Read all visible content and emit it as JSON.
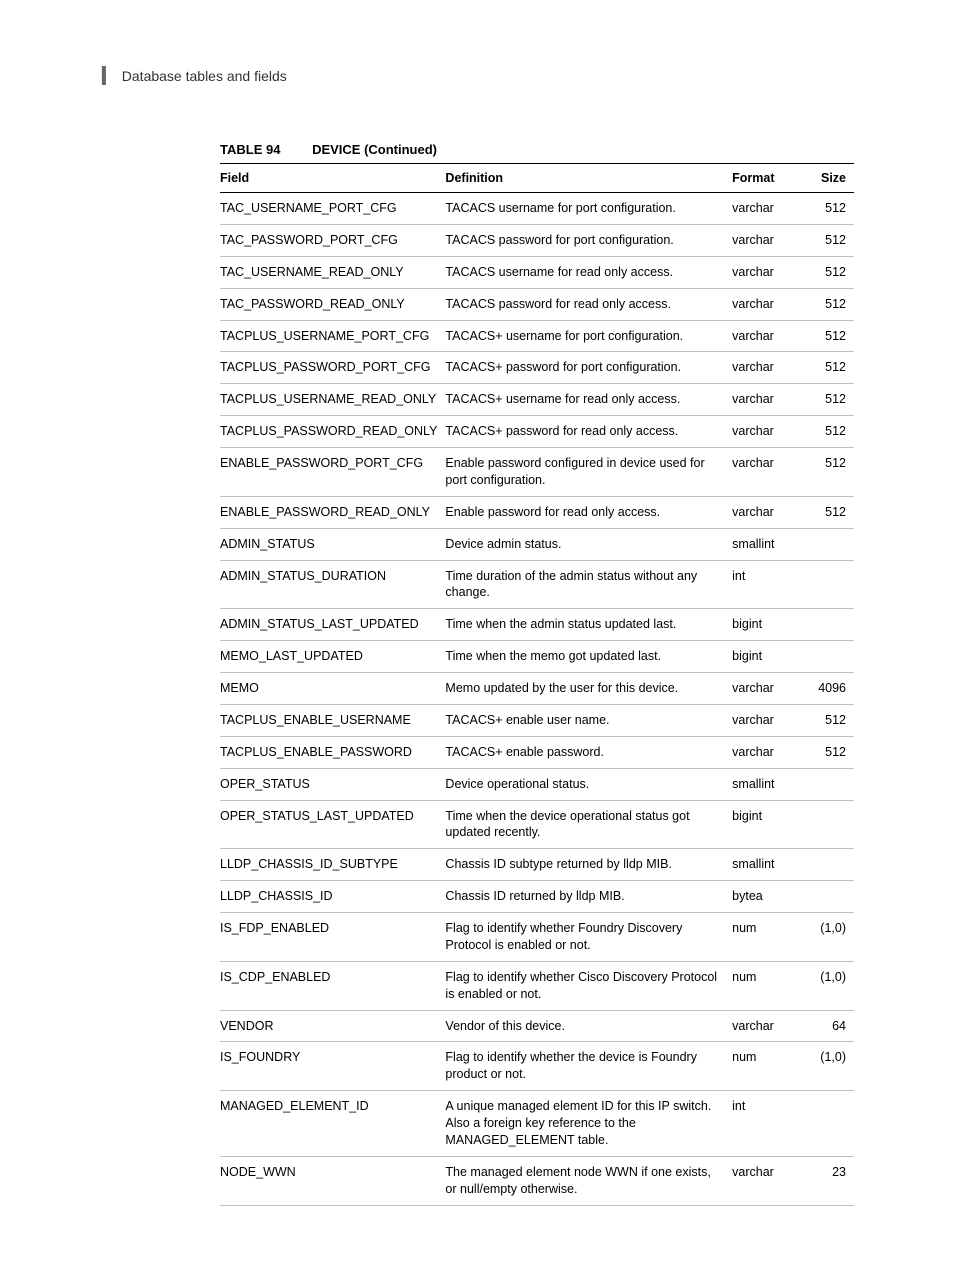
{
  "header": {
    "letter": "I",
    "title": "Database tables and fields"
  },
  "table": {
    "label": "TABLE 94",
    "name": "DEVICE (Continued)",
    "columns": [
      "Field",
      "Definition",
      "Format",
      "Size"
    ],
    "rows": [
      [
        "TAC_USERNAME_PORT_CFG",
        "TACACS username for port configuration.",
        "varchar",
        "512"
      ],
      [
        "TAC_PASSWORD_PORT_CFG",
        "TACACS password for port configuration.",
        "varchar",
        "512"
      ],
      [
        "TAC_USERNAME_READ_ONLY",
        "TACACS username for read only access.",
        "varchar",
        "512"
      ],
      [
        "TAC_PASSWORD_READ_ONLY",
        "TACACS password for read only access.",
        "varchar",
        "512"
      ],
      [
        "TACPLUS_USERNAME_PORT_CFG",
        "TACACS+ username for port configuration.",
        "varchar",
        "512"
      ],
      [
        "TACPLUS_PASSWORD_PORT_CFG",
        "TACACS+ password for port configuration.",
        "varchar",
        "512"
      ],
      [
        "TACPLUS_USERNAME_READ_ONLY",
        "TACACS+ username for read only access.",
        "varchar",
        "512"
      ],
      [
        "TACPLUS_PASSWORD_READ_ONLY",
        "TACACS+ password for read only access.",
        "varchar",
        "512"
      ],
      [
        "ENABLE_PASSWORD_PORT_CFG",
        "Enable password configured in device used for port configuration.",
        "varchar",
        "512"
      ],
      [
        "ENABLE_PASSWORD_READ_ONLY",
        "Enable password for read only access.",
        "varchar",
        "512"
      ],
      [
        "ADMIN_STATUS",
        "Device admin status.",
        "smallint",
        ""
      ],
      [
        "ADMIN_STATUS_DURATION",
        "Time duration of the admin status without any change.",
        "int",
        ""
      ],
      [
        "ADMIN_STATUS_LAST_UPDATED",
        "Time when the admin status updated last.",
        "bigint",
        ""
      ],
      [
        "MEMO_LAST_UPDATED",
        "Time when the memo got updated last.",
        "bigint",
        ""
      ],
      [
        "MEMO",
        "Memo updated by the user for this device.",
        "varchar",
        "4096"
      ],
      [
        "TACPLUS_ENABLE_USERNAME",
        "TACACS+ enable user name.",
        "varchar",
        "512"
      ],
      [
        "TACPLUS_ENABLE_PASSWORD",
        "TACACS+ enable password.",
        "varchar",
        "512"
      ],
      [
        "OPER_STATUS",
        "Device operational status.",
        "smallint",
        ""
      ],
      [
        "OPER_STATUS_LAST_UPDATED",
        "Time when the device operational status got updated recently.",
        "bigint",
        ""
      ],
      [
        "LLDP_CHASSIS_ID_SUBTYPE",
        "Chassis ID subtype returned by lldp MIB.",
        "smallint",
        ""
      ],
      [
        "LLDP_CHASSIS_ID",
        "Chassis ID returned by lldp MIB.",
        "bytea",
        ""
      ],
      [
        "IS_FDP_ENABLED",
        "Flag to identify whether Foundry Discovery Protocol is enabled or not.",
        "num",
        "(1,0)"
      ],
      [
        "IS_CDP_ENABLED",
        "Flag to identify whether Cisco Discovery Protocol is enabled or not.",
        "num",
        "(1,0)"
      ],
      [
        "VENDOR",
        "Vendor of this device.",
        "varchar",
        "64"
      ],
      [
        "IS_FOUNDRY",
        "Flag to identify whether the device is Foundry product or not.",
        "num",
        "(1,0)"
      ],
      [
        "MANAGED_ELEMENT_ID",
        "A unique managed element ID for this IP switch. Also a foreign key reference to the MANAGED_ELEMENT table.",
        "int",
        ""
      ],
      [
        "NODE_WWN",
        "The managed element node WWN if one exists, or null/empty otherwise.",
        "varchar",
        "23"
      ]
    ]
  }
}
